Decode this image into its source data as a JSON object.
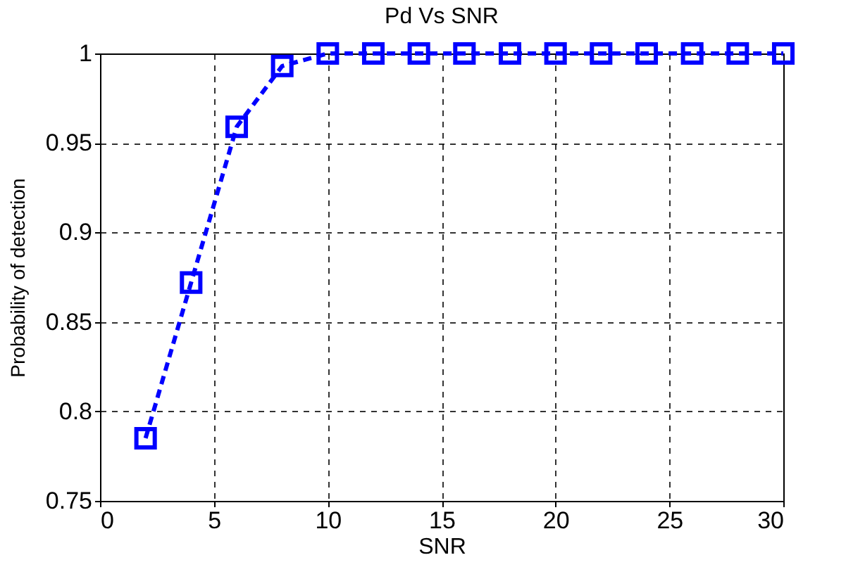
{
  "chart_data": {
    "type": "line",
    "title": "Pd Vs SNR",
    "xlabel": "SNR",
    "ylabel": "Probability of detection",
    "x": [
      2,
      4,
      6,
      8,
      10,
      12,
      14,
      16,
      18,
      20,
      22,
      24,
      26,
      28,
      30
    ],
    "series": [
      {
        "color": "#0000ff",
        "values": [
          0.785,
          0.872,
          0.959,
          0.993,
          1,
          1,
          1,
          1,
          1,
          1,
          1,
          1,
          1,
          1,
          1
        ]
      }
    ],
    "xlim": [
      0,
      30
    ],
    "xticks": [
      0,
      5,
      10,
      15,
      20,
      25,
      30
    ],
    "ylim": [
      0.75,
      1
    ],
    "yticks": [
      0.75,
      0.8,
      0.85,
      0.9,
      0.95,
      1
    ],
    "grid": true,
    "marker": "square",
    "line_style": "dashed"
  }
}
